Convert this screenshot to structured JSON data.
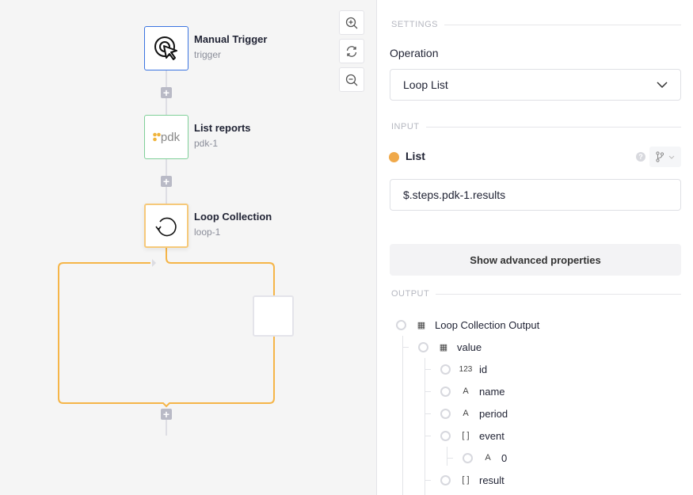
{
  "canvas": {
    "nodes": [
      {
        "title": "Manual Trigger",
        "subtitle": "trigger",
        "icon": "cursor-click-icon",
        "border": "#3b74e0"
      },
      {
        "title": "List reports",
        "subtitle": "pdk-1",
        "icon": "pdk-logo",
        "logo_text": "pdk",
        "border": "#7fcf98"
      },
      {
        "title": "Loop Collection",
        "subtitle": "loop-1",
        "icon": "loop-icon",
        "border": "#f6c97a"
      }
    ],
    "loop_color": "#f5b548",
    "zoom_controls": [
      "zoom-in-icon",
      "reset-icon",
      "zoom-out-icon"
    ]
  },
  "panel": {
    "settings_label": "SETTINGS",
    "operation_label": "Operation",
    "operation_value": "Loop List",
    "input_label": "INPUT",
    "list_label": "List",
    "list_dot_color": "#f0a94a",
    "list_value": "$.steps.pdk-1.results",
    "advanced_button": "Show advanced properties",
    "output_label": "OUTPUT",
    "output_tree": [
      {
        "icon": "table-icon",
        "glyph": "▦",
        "label": "Loop Collection Output",
        "depth": 0
      },
      {
        "icon": "table-icon",
        "glyph": "▦",
        "label": "value",
        "depth": 1
      },
      {
        "icon": "number-icon",
        "glyph": "123",
        "label": "id",
        "depth": 2
      },
      {
        "icon": "text-icon",
        "glyph": "A",
        "label": "name",
        "depth": 2
      },
      {
        "icon": "text-icon",
        "glyph": "A",
        "label": "period",
        "depth": 2
      },
      {
        "icon": "array-icon",
        "glyph": "[ ]",
        "label": "event",
        "depth": 2
      },
      {
        "icon": "text-icon",
        "glyph": "A",
        "label": "0",
        "depth": 3
      },
      {
        "icon": "array-icon",
        "glyph": "[ ]",
        "label": "result",
        "depth": 2
      }
    ]
  }
}
